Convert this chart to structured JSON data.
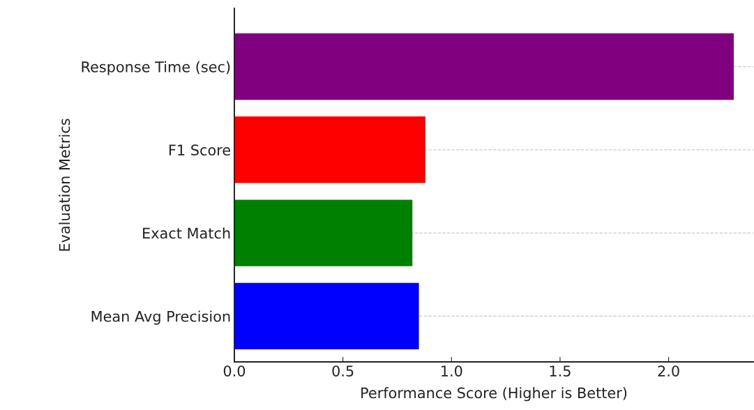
{
  "chart_data": {
    "type": "bar",
    "orientation": "horizontal",
    "xlabel": "Performance Score (Higher is Better)",
    "ylabel": "Evaluation Metrics",
    "categories": [
      "Response Time (sec)",
      "F1 Score",
      "Exact Match",
      "Mean Avg Precision"
    ],
    "values": [
      2.3,
      0.88,
      0.82,
      0.85
    ],
    "colors": [
      "#800080",
      "#ff0000",
      "#008000",
      "#0000ff"
    ],
    "xlim": [
      0,
      2.39
    ],
    "xticks": [
      {
        "value": 0,
        "label": "0.0"
      },
      0.5,
      {
        "value": 1,
        "label": "1.0"
      },
      1.5,
      {
        "value": 2,
        "label": "2.0"
      }
    ],
    "grid": "y"
  }
}
